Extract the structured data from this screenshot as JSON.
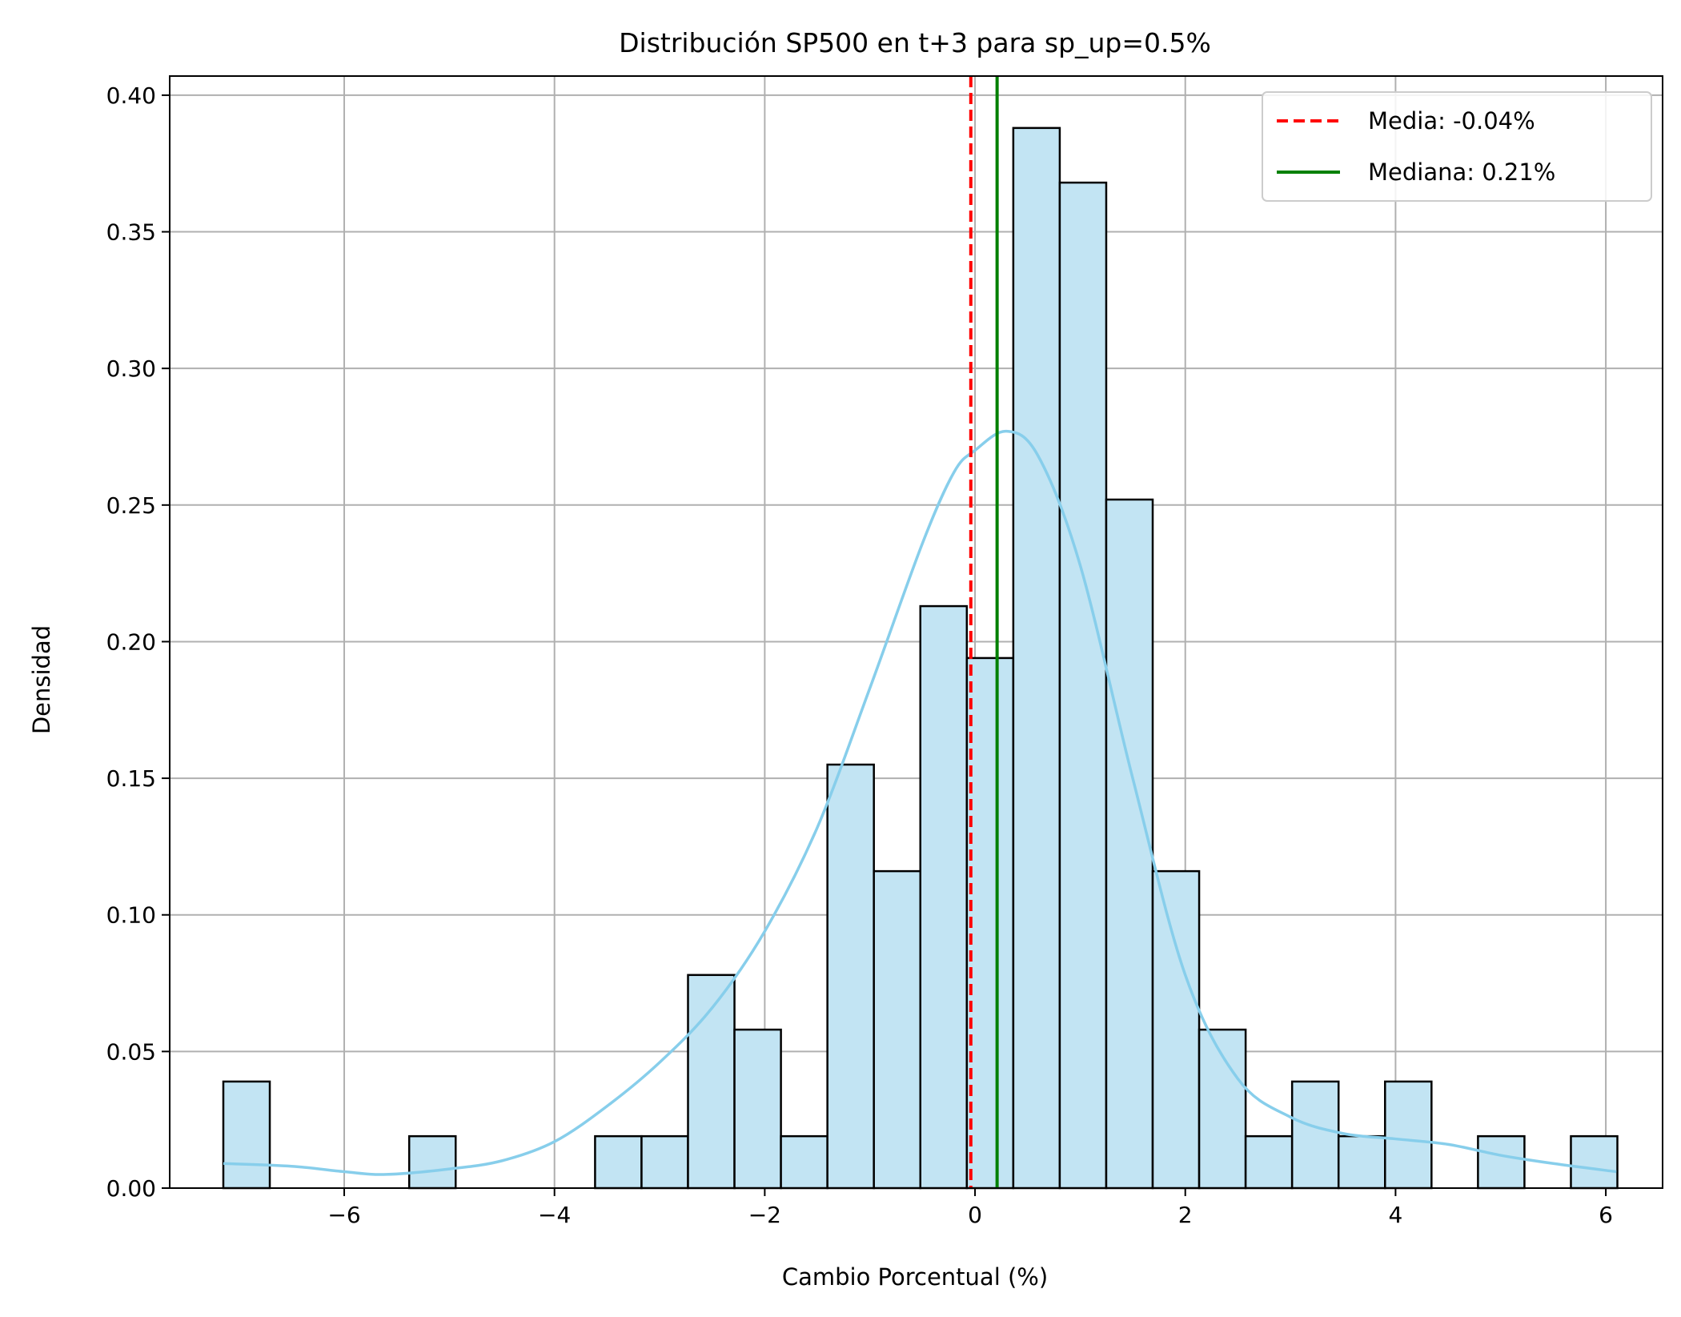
{
  "chart_data": {
    "type": "bar",
    "title": "Distribución SP500 en t+3 para sp_up=0.5%",
    "xlabel": "Cambio Porcentual (%)",
    "ylabel": "Densidad",
    "xlim": [
      -7.66,
      6.54
    ],
    "ylim": [
      0,
      0.407
    ],
    "grid": true,
    "x_ticks": [
      -6,
      -4,
      -2,
      0,
      2,
      4,
      6
    ],
    "x_tick_labels": [
      "−6",
      "−4",
      "−2",
      "0",
      "2",
      "4",
      "6"
    ],
    "y_ticks": [
      0.0,
      0.05,
      0.1,
      0.15,
      0.2,
      0.25,
      0.3,
      0.35,
      0.4
    ],
    "y_tick_labels": [
      "0.00",
      "0.05",
      "0.10",
      "0.15",
      "0.20",
      "0.25",
      "0.30",
      "0.35",
      "0.40"
    ],
    "histogram": {
      "bin_start": -7.15,
      "bin_width": 0.442,
      "values": [
        0.039,
        0,
        0,
        0,
        0.019,
        0,
        0,
        0,
        0.019,
        0.019,
        0.078,
        0.058,
        0.019,
        0.155,
        0.116,
        0.213,
        0.194,
        0.388,
        0.368,
        0.252,
        0.116,
        0.058,
        0.019,
        0.039,
        0.019,
        0.039,
        0,
        0.019,
        0,
        0.019
      ],
      "fill_color": "#c2e4f3",
      "edge_color": "#000000"
    },
    "kde": {
      "color": "#87ceeb",
      "x": [
        -7.15,
        -6.5,
        -6.0,
        -5.6,
        -5.0,
        -4.5,
        -4.0,
        -3.5,
        -3.0,
        -2.5,
        -2.0,
        -1.5,
        -1.0,
        -0.5,
        -0.2,
        0.0,
        0.3,
        0.6,
        1.0,
        1.5,
        2.0,
        2.5,
        3.0,
        3.5,
        4.0,
        4.5,
        5.0,
        5.5,
        6.1
      ],
      "y": [
        0.009,
        0.008,
        0.006,
        0.005,
        0.007,
        0.01,
        0.017,
        0.03,
        0.046,
        0.066,
        0.094,
        0.132,
        0.183,
        0.236,
        0.262,
        0.27,
        0.277,
        0.268,
        0.228,
        0.15,
        0.078,
        0.04,
        0.026,
        0.02,
        0.018,
        0.016,
        0.012,
        0.009,
        0.006
      ]
    },
    "series": [
      {
        "name": "Media: -0.04%",
        "value": -0.04,
        "color": "#ff0000",
        "style": "dashed"
      },
      {
        "name": "Mediana: 0.21%",
        "value": 0.21,
        "color": "#008000",
        "style": "solid"
      }
    ],
    "legend_position": "top-right"
  }
}
